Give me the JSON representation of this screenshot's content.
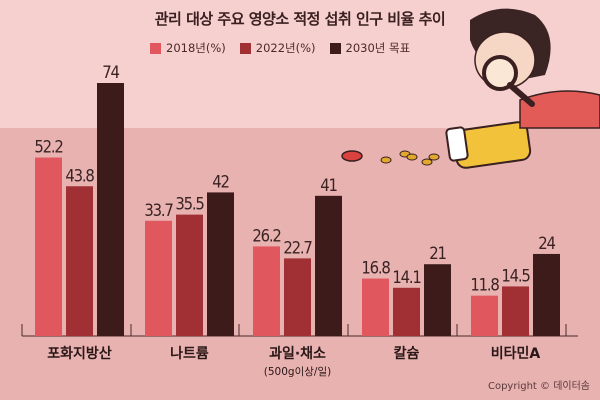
{
  "title": "관리 대상 주요 영양소 적정 섭취 인구 비율 추이",
  "copyright": "Copyright © 데이터솜",
  "colors": {
    "s2018": "#e0575d",
    "s2022": "#a13035",
    "s2030": "#3d1b1b",
    "bg_top": "#f6cfcf",
    "bg_bottom": "#e8b2b1"
  },
  "chart_data": {
    "type": "bar",
    "categories": [
      "포화지방산",
      "나트륨",
      "과일·채소",
      "칼슘",
      "비타민A"
    ],
    "category_notes": [
      "",
      "",
      "(500g이상/일)",
      "",
      ""
    ],
    "series": [
      {
        "name": "2018년(%)",
        "values": [
          52.2,
          33.7,
          26.2,
          16.8,
          11.8
        ],
        "labels": [
          "52.2",
          "33.7",
          "26.2",
          "16.8",
          "11.8"
        ]
      },
      {
        "name": "2022년(%)",
        "values": [
          43.8,
          35.5,
          22.7,
          14.1,
          14.5
        ],
        "labels": [
          "43.8",
          "35.5",
          "22.7",
          "14.1",
          "14.5"
        ]
      },
      {
        "name": "2030년 목표",
        "values": [
          74,
          42,
          41,
          21,
          24
        ],
        "labels": [
          "74",
          "42",
          "41",
          "21",
          "24"
        ]
      }
    ],
    "ylim": [
      0,
      74
    ],
    "legend_position": "top-center",
    "grid": false
  }
}
